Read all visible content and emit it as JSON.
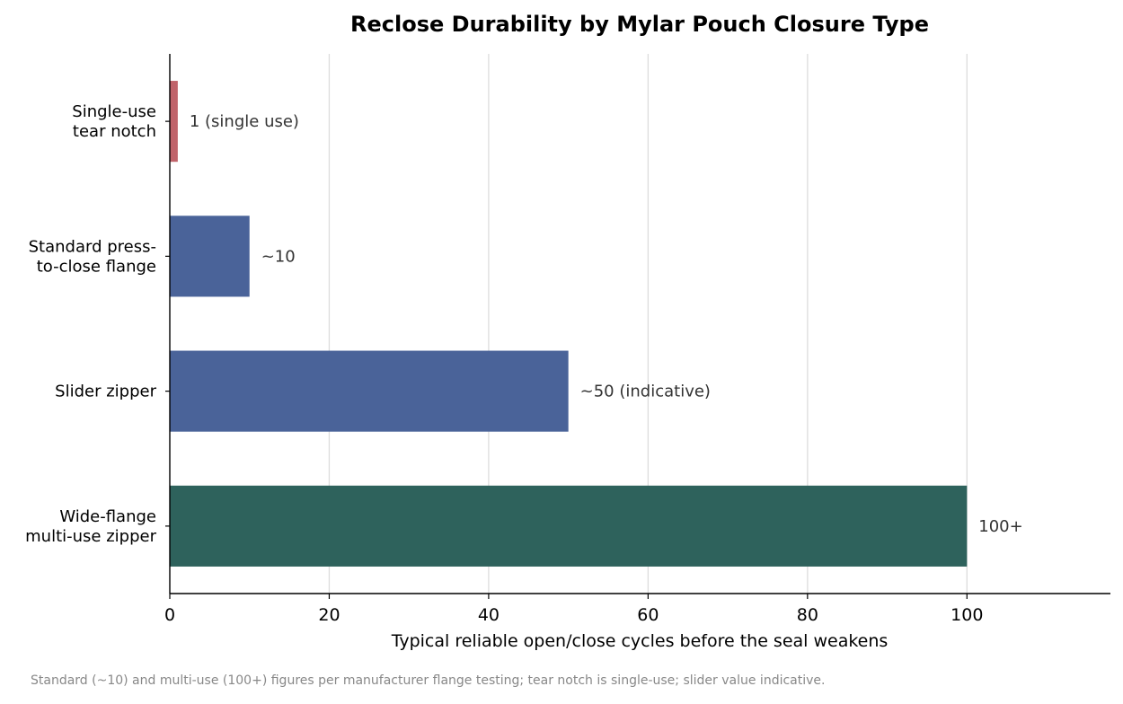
{
  "chart_data": {
    "type": "bar",
    "orientation": "horizontal",
    "title": "Reclose Durability by Mylar Pouch Closure Type",
    "xlabel": "Typical reliable open/close cycles before the seal weakens",
    "ylabel": "",
    "xlim": [
      0,
      118
    ],
    "xticks": [
      0,
      20,
      40,
      60,
      80,
      100
    ],
    "grid": "vertical",
    "categories": [
      [
        "Single-use",
        "tear notch"
      ],
      [
        "Standard press-",
        "to-close flange"
      ],
      [
        "Slider zipper"
      ],
      [
        "Wide-flange",
        "multi-use zipper"
      ]
    ],
    "values": [
      1,
      10,
      50,
      100
    ],
    "data_labels": [
      "1 (single use)",
      "~10",
      "~50 (indicative)",
      "100+"
    ],
    "bar_colors": [
      "#c0636a",
      "#4a6399",
      "#4a6399",
      "#2e625c"
    ],
    "footnote": "Standard (~10) and multi-use (100+) figures per manufacturer flange testing; tear notch is single-use; slider value indicative."
  }
}
